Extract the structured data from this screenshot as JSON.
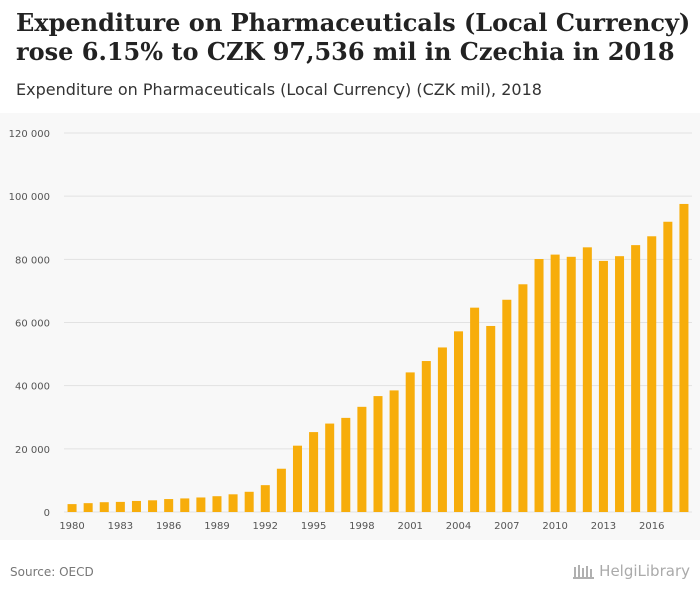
{
  "header": {
    "title": "Expenditure on Pharmaceuticals (Local Currency) rose 6.15% to CZK 97,536 mil in Czechia in 2018",
    "subtitle": "Expenditure on Pharmaceuticals (Local Currency) (CZK mil), 2018"
  },
  "footer": {
    "source": "Source: OECD",
    "brand": "HelgiLibrary"
  },
  "colors": {
    "bar": "#f7ad0b",
    "grid": "#e2e2e2",
    "axis_text": "#555555",
    "background": "#f8f8f8"
  },
  "chart_data": {
    "type": "bar",
    "title": "Expenditure on Pharmaceuticals (Local Currency) rose 6.15% to CZK 97,536 mil in Czechia in 2018",
    "subtitle": "Expenditure on Pharmaceuticals (Local Currency) (CZK mil), 2018",
    "xlabel": "",
    "ylabel": "",
    "ylim": [
      0,
      120000
    ],
    "yticks": [
      0,
      20000,
      40000,
      60000,
      80000,
      100000,
      120000
    ],
    "ytick_labels": [
      "0",
      "20 000",
      "40 000",
      "60 000",
      "80 000",
      "100 000",
      "120 000"
    ],
    "xtick_labels": [
      "1980",
      "1983",
      "1986",
      "1989",
      "1992",
      "1995",
      "1998",
      "2001",
      "2004",
      "2007",
      "2010",
      "2013",
      "2016"
    ],
    "grid": true,
    "categories": [
      "1980",
      "1981",
      "1982",
      "1983",
      "1984",
      "1985",
      "1986",
      "1987",
      "1988",
      "1989",
      "1990",
      "1991",
      "1992",
      "1993",
      "1994",
      "1995",
      "1996",
      "1997",
      "1998",
      "1999",
      "2000",
      "2001",
      "2002",
      "2003",
      "2004",
      "2005",
      "2006",
      "2007",
      "2008",
      "2009",
      "2010",
      "2011",
      "2012",
      "2013",
      "2014",
      "2015",
      "2016",
      "2017",
      "2018"
    ],
    "values": [
      2500,
      2800,
      3100,
      3200,
      3500,
      3700,
      4100,
      4300,
      4600,
      5000,
      5600,
      6400,
      8500,
      13700,
      21000,
      25300,
      28000,
      29800,
      33300,
      36700,
      38500,
      44200,
      47800,
      52100,
      57200,
      64700,
      58900,
      67200,
      72100,
      80100,
      81500,
      80800,
      83800,
      79500,
      81000,
      84500,
      87300,
      91900,
      97536
    ]
  }
}
